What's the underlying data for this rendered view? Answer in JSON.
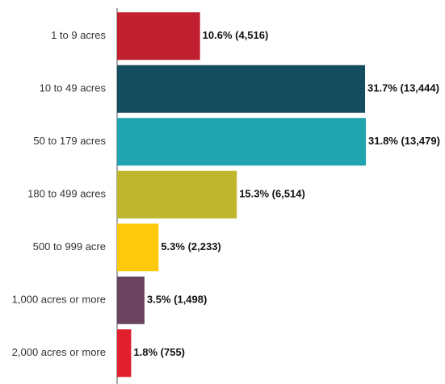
{
  "chart_data": {
    "type": "hbar",
    "categories": [
      "1 to 9 acres",
      "10 to 49 acres",
      "50 to 179 acres",
      "180 to 499 acres",
      "500 to 999 acre",
      "1,000 acres or more",
      "2,000 acres or more"
    ],
    "values": [
      10.6,
      31.7,
      31.8,
      15.3,
      5.3,
      3.5,
      1.8
    ],
    "value_labels": [
      "10.6% (4,516)",
      "31.7% (13,444)",
      "31.8% (13,479)",
      "15.3% (6,514)",
      "5.3% (2,233)",
      "3.5% (1,498)",
      "1.8% (755)"
    ],
    "colors": [
      "#c0202f",
      "#134d5e",
      "#20a4b0",
      "#bfb72e",
      "#fdc90a",
      "#6b4560",
      "#e0202f"
    ]
  }
}
